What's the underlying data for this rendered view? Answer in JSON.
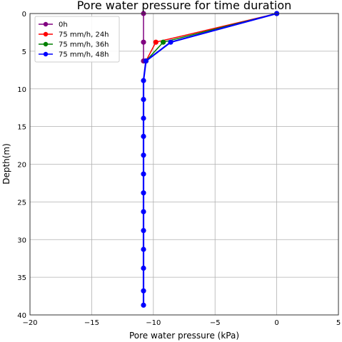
{
  "chart_data": {
    "type": "line",
    "title": "Pore water pressure for time duration",
    "xlabel": "Pore water pressure (kPa)",
    "ylabel": "Depth(m)",
    "xlim": [
      -20,
      5
    ],
    "ylim": [
      0,
      40
    ],
    "y_inverted": true,
    "grid": true,
    "legend_position": "top-left",
    "x_ticks": [
      -20,
      -15,
      -10,
      -5,
      0,
      5
    ],
    "y_ticks": [
      0,
      5,
      10,
      15,
      20,
      25,
      30,
      35,
      40
    ],
    "series": [
      {
        "name": "0h",
        "color": "#800080",
        "points": [
          [
            -10.8,
            0
          ],
          [
            -10.8,
            3.8
          ],
          [
            -10.8,
            6.3
          ]
        ]
      },
      {
        "name": "75 mm/h, 24h",
        "color": "#ff0000",
        "points": [
          [
            0,
            0
          ],
          [
            -9.8,
            3.8
          ],
          [
            -10.6,
            6.3
          ]
        ]
      },
      {
        "name": "75 mm/h, 36h",
        "color": "#008000",
        "points": [
          [
            0,
            0
          ],
          [
            -9.2,
            3.8
          ],
          [
            -10.6,
            6.3
          ]
        ]
      },
      {
        "name": "75 mm/h, 48h",
        "color": "#0000ff",
        "points": [
          [
            0,
            0
          ],
          [
            -8.6,
            3.8
          ],
          [
            -10.6,
            6.3
          ],
          [
            -10.8,
            8.9
          ],
          [
            -10.8,
            11.4
          ],
          [
            -10.8,
            13.9
          ],
          [
            -10.8,
            16.3
          ],
          [
            -10.8,
            18.8
          ],
          [
            -10.8,
            21.3
          ],
          [
            -10.8,
            23.8
          ],
          [
            -10.8,
            26.3
          ],
          [
            -10.8,
            28.8
          ],
          [
            -10.8,
            31.3
          ],
          [
            -10.8,
            33.8
          ],
          [
            -10.8,
            36.8
          ],
          [
            -10.8,
            38.7
          ]
        ]
      }
    ]
  }
}
